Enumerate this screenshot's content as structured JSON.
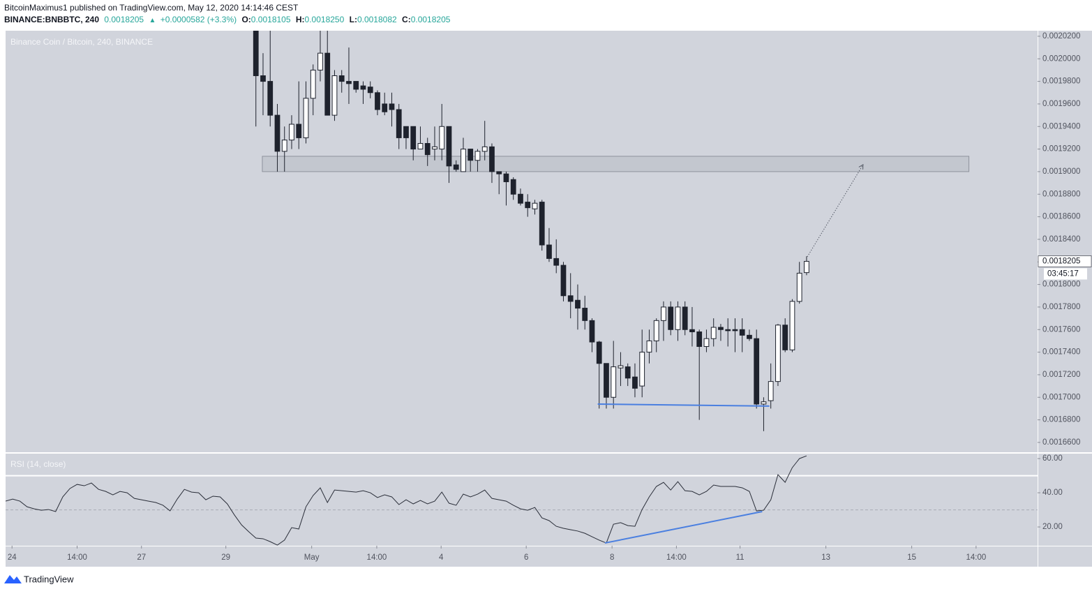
{
  "header": {
    "author_line": "BitcoinMaximus1 published on TradingView.com, May 12, 2020 14:14:46 CEST",
    "symbol": "BINANCE:BNBBTC, 240",
    "last": "0.0018205",
    "arrow": "▲",
    "change": "+0.0000582 (+3.3%)",
    "ohlc": [
      {
        "key": "O:",
        "value": "0.0018105"
      },
      {
        "key": "H:",
        "value": "0.0018250"
      },
      {
        "key": "L:",
        "value": "0.0018082"
      },
      {
        "key": "C:",
        "value": "0.0018205"
      }
    ]
  },
  "footer": {
    "brand": "TradingView"
  },
  "chart_data": {
    "type": "candlestick",
    "title": "Binance Coin / Bitcoin, 240, BINANCE",
    "up_color": "#ffffff",
    "down_color": "#1e222d",
    "grid": false,
    "last_price_label": "0.0018205",
    "countdown": "03:45:17",
    "xlim": [
      0,
      144.3
    ],
    "xticks": [
      {
        "value": 0.9,
        "label": "24"
      },
      {
        "value": 10,
        "label": "14:00"
      },
      {
        "value": 19,
        "label": "27"
      },
      {
        "value": 30.8,
        "label": "29"
      },
      {
        "value": 42.8,
        "label": "May"
      },
      {
        "value": 51.9,
        "label": "14:00"
      },
      {
        "value": 60.9,
        "label": "4"
      },
      {
        "value": 72.8,
        "label": "6"
      },
      {
        "value": 84.8,
        "label": "8"
      },
      {
        "value": 93.8,
        "label": "14:00"
      },
      {
        "value": 102.7,
        "label": "11"
      },
      {
        "value": 114.7,
        "label": "13"
      },
      {
        "value": 126.7,
        "label": "15"
      },
      {
        "value": 135.7,
        "label": "14:00"
      }
    ],
    "ylim": [
      0.0016513,
      0.0020249
    ],
    "yticks": [
      {
        "value": 0.00166,
        "label": "0.0016600"
      },
      {
        "value": 0.00168,
        "label": "0.0016800"
      },
      {
        "value": 0.0017,
        "label": "0.0017000"
      },
      {
        "value": 0.00172,
        "label": "0.0017200"
      },
      {
        "value": 0.00174,
        "label": "0.0017400"
      },
      {
        "value": 0.00176,
        "label": "0.0017600"
      },
      {
        "value": 0.00178,
        "label": "0.0017800"
      },
      {
        "value": 0.0018,
        "label": "0.0018000"
      },
      {
        "value": 0.00182,
        "label": "0.0018200"
      },
      {
        "value": 0.00184,
        "label": "0.0018400"
      },
      {
        "value": 0.00186,
        "label": "0.0018600"
      },
      {
        "value": 0.00188,
        "label": "0.0018800"
      },
      {
        "value": 0.0019,
        "label": "0.0019000"
      },
      {
        "value": 0.00192,
        "label": "0.0019200"
      },
      {
        "value": 0.00194,
        "label": "0.0019400"
      },
      {
        "value": 0.00196,
        "label": "0.0019600"
      },
      {
        "value": 0.00198,
        "label": "0.0019800"
      },
      {
        "value": 0.002,
        "label": "0.0020000"
      },
      {
        "value": 0.00202,
        "label": "0.0020200"
      }
    ],
    "open": [
      null,
      null,
      null,
      null,
      null,
      null,
      null,
      null,
      null,
      null,
      null,
      null,
      null,
      null,
      null,
      null,
      null,
      null,
      null,
      null,
      null,
      null,
      null,
      null,
      null,
      null,
      null,
      null,
      null,
      null,
      null,
      null,
      null,
      null,
      null,
      0.00203,
      0.001985,
      0.00198,
      0.00195,
      0.001918,
      0.001928,
      0.001942,
      0.00193,
      0.001965,
      0.00199,
      0.002005,
      0.00195,
      0.001985,
      0.00198,
      0.00198,
      0.001976,
      0.001975,
      0.00197,
      0.00196,
      0.00196,
      0.001955,
      0.00194,
      0.00194,
      0.00192,
      0.001925,
      0.00192,
      0.00192,
      0.00194,
      0.001906,
      0.0019,
      0.00192,
      0.00191,
      0.001918,
      0.001922,
      0.0019,
      0.001898,
      0.001893,
      0.00188,
      0.001873,
      0.001867,
      0.001873,
      0.001835,
      0.001823,
      0.001817,
      0.00179,
      0.001786,
      0.001779,
      0.001768,
      0.001749,
      0.00173,
      0.0017,
      0.001726,
      0.001727,
      0.001718,
      0.00171,
      0.00174,
      0.00175,
      0.001768,
      0.00178,
      0.00176,
      0.00178,
      0.00176,
      0.001758,
      0.001745,
      0.001752,
      0.001762,
      0.00176,
      0.00176,
      0.00176,
      0.001755,
      0.001752,
      0.001694,
      0.001697,
      0.001714,
      0.001764,
      0.001742,
      0.001785,
      0.0018105
    ],
    "high": [
      null,
      null,
      null,
      null,
      null,
      null,
      null,
      null,
      null,
      null,
      null,
      null,
      null,
      null,
      null,
      null,
      null,
      null,
      null,
      null,
      null,
      null,
      null,
      null,
      null,
      null,
      null,
      null,
      null,
      null,
      null,
      null,
      null,
      null,
      null,
      0.00204,
      0.002005,
      0.00203,
      0.00196,
      0.00194,
      0.00195,
      0.00198,
      0.00198,
      0.001995,
      0.00203,
      0.00203,
      0.00199,
      0.00199,
      0.00201,
      0.00198,
      0.00198,
      0.00198,
      0.001972,
      0.00197,
      0.00197,
      0.00196,
      0.00194,
      0.00194,
      0.00194,
      0.00193,
      0.00194,
      0.00196,
      0.00194,
      0.00191,
      0.00193,
      0.00192,
      0.00192,
      0.001945,
      0.001925,
      0.0019,
      0.0019,
      0.001895,
      0.001885,
      0.00188,
      0.001875,
      0.001875,
      0.00185,
      0.00184,
      0.00182,
      0.00181,
      0.0018,
      0.00179,
      0.00177,
      0.00175,
      0.00173,
      0.00175,
      0.00174,
      0.00173,
      0.00173,
      0.00176,
      0.00176,
      0.00177,
      0.001785,
      0.001785,
      0.001785,
      0.001785,
      0.00178,
      0.00176,
      0.00176,
      0.00177,
      0.001765,
      0.00177,
      0.00177,
      0.00177,
      0.00176,
      0.00176,
      0.0017,
      0.00173,
      0.001765,
      0.00177,
      0.001787,
      0.00182,
      0.001825
    ],
    "low": [
      null,
      null,
      null,
      null,
      null,
      null,
      null,
      null,
      null,
      null,
      null,
      null,
      null,
      null,
      null,
      null,
      null,
      null,
      null,
      null,
      null,
      null,
      null,
      null,
      null,
      null,
      null,
      null,
      null,
      null,
      null,
      null,
      null,
      null,
      null,
      0.00194,
      0.00195,
      0.00194,
      0.0019,
      0.0019,
      0.00192,
      0.00192,
      0.001925,
      0.00195,
      0.00198,
      0.00195,
      0.001945,
      0.00197,
      0.00196,
      0.00197,
      0.00196,
      0.001965,
      0.00195,
      0.00195,
      0.00194,
      0.00192,
      0.00192,
      0.00191,
      0.00192,
      0.001905,
      0.00191,
      0.00191,
      0.00189,
      0.0019,
      0.0019,
      0.0019,
      0.0019,
      0.00191,
      0.00189,
      0.00188,
      0.00187,
      0.001875,
      0.00187,
      0.00186,
      0.001862,
      0.00183,
      0.00182,
      0.00181,
      0.001785,
      0.00177,
      0.00176,
      0.00176,
      0.00174,
      0.00169,
      0.00169,
      0.00169,
      0.00171,
      0.00171,
      0.0017,
      0.0017,
      0.00173,
      0.00174,
      0.00175,
      0.001755,
      0.00175,
      0.001755,
      0.001745,
      0.00168,
      0.00174,
      0.001745,
      0.00175,
      0.001745,
      0.00174,
      0.00174,
      0.00175,
      0.00169,
      0.00167,
      0.00169,
      0.00171,
      0.00174,
      0.00174,
      0.001783,
      0.0018082
    ],
    "close": [
      null,
      null,
      null,
      null,
      null,
      null,
      null,
      null,
      null,
      null,
      null,
      null,
      null,
      null,
      null,
      null,
      null,
      null,
      null,
      null,
      null,
      null,
      null,
      null,
      null,
      null,
      null,
      null,
      null,
      null,
      null,
      null,
      null,
      null,
      null,
      0.001985,
      0.00198,
      0.00195,
      0.001918,
      0.001928,
      0.001942,
      0.00193,
      0.001965,
      0.00199,
      0.002005,
      0.00195,
      0.001985,
      0.00198,
      0.001978,
      0.001973,
      0.001973,
      0.00197,
      0.001955,
      0.001953,
      0.001955,
      0.00193,
      0.00193,
      0.00192,
      0.001925,
      0.001915,
      0.001922,
      0.00194,
      0.001905,
      0.001902,
      0.00192,
      0.00191,
      0.001918,
      0.001922,
      0.0019,
      0.001898,
      0.001891,
      0.00188,
      0.001872,
      0.001868,
      0.001872,
      0.001835,
      0.001823,
      0.001817,
      0.00179,
      0.001785,
      0.001779,
      0.001768,
      0.001749,
      0.00173,
      0.0017,
      0.001727,
      0.001728,
      0.001717,
      0.001708,
      0.00174,
      0.00175,
      0.001768,
      0.00178,
      0.00176,
      0.00178,
      0.00176,
      0.001758,
      0.001745,
      0.001752,
      0.001762,
      0.00176,
      0.001759,
      0.001759,
      0.001755,
      0.001752,
      0.001694,
      0.001696,
      0.001714,
      0.001764,
      0.001742,
      0.001785,
      0.00181,
      0.0018205
    ],
    "zone": {
      "x": [
        35.9,
        134.7
      ],
      "y": [
        0.0019,
        0.0019136
      ],
      "color": "#b8bbc4"
    },
    "projection": {
      "x": [
        112.1,
        119.9
      ],
      "y": [
        0.0018245,
        0.0019062
      ],
      "color": "#555a66"
    },
    "support_line": {
      "x": [
        82.8,
        106.8
      ],
      "y": [
        0.001694,
        0.0016922
      ],
      "color": "#4a7fe0"
    },
    "rsi": {
      "name": "RSI (14, close)",
      "color": "#2a2e39",
      "ylim": [
        9.0,
        62.9
      ],
      "yticks": [
        {
          "value": 20,
          "label": "20.00"
        },
        {
          "value": 40,
          "label": "40.00"
        },
        {
          "value": 60,
          "label": "60.00"
        }
      ],
      "upper_line": 50,
      "lower_line": 30,
      "values": [
        35.1,
        36.3,
        35.1,
        31.8,
        30.6,
        29.8,
        30.2,
        29.0,
        37.6,
        42.5,
        44.9,
        44.1,
        45.7,
        42.0,
        40.8,
        38.8,
        40.8,
        40.0,
        36.7,
        35.9,
        35.1,
        34.3,
        32.7,
        29.4,
        36.3,
        42.0,
        40.4,
        40.0,
        35.9,
        38.0,
        37.6,
        33.5,
        27.0,
        21.2,
        17.2,
        13.5,
        13.1,
        11.4,
        9.4,
        12.3,
        19.6,
        18.8,
        31.8,
        38.4,
        42.9,
        34.3,
        41.6,
        41.2,
        40.8,
        40.4,
        41.2,
        40.0,
        37.2,
        38.8,
        37.6,
        33.1,
        35.9,
        33.5,
        35.5,
        33.5,
        35.1,
        40.4,
        33.9,
        32.7,
        39.2,
        37.6,
        39.2,
        41.6,
        36.7,
        35.9,
        35.1,
        32.7,
        30.6,
        29.8,
        31.4,
        25.3,
        23.7,
        20.4,
        19.2,
        18.4,
        17.6,
        16.3,
        14.3,
        12.3,
        10.6,
        21.6,
        22.5,
        20.8,
        20.4,
        30.2,
        37.6,
        43.7,
        46.1,
        41.6,
        46.5,
        41.2,
        40.8,
        38.8,
        40.8,
        44.5,
        43.7,
        43.7,
        43.7,
        42.9,
        40.8,
        29.4,
        29.8,
        35.9,
        50.6,
        46.1,
        54.7,
        60.0,
        61.6
      ],
      "divergence_line": {
        "x": [
          83.8,
          105.8
        ],
        "y": [
          10.6,
          29.0
        ],
        "color": "#4a7fe0"
      }
    }
  }
}
